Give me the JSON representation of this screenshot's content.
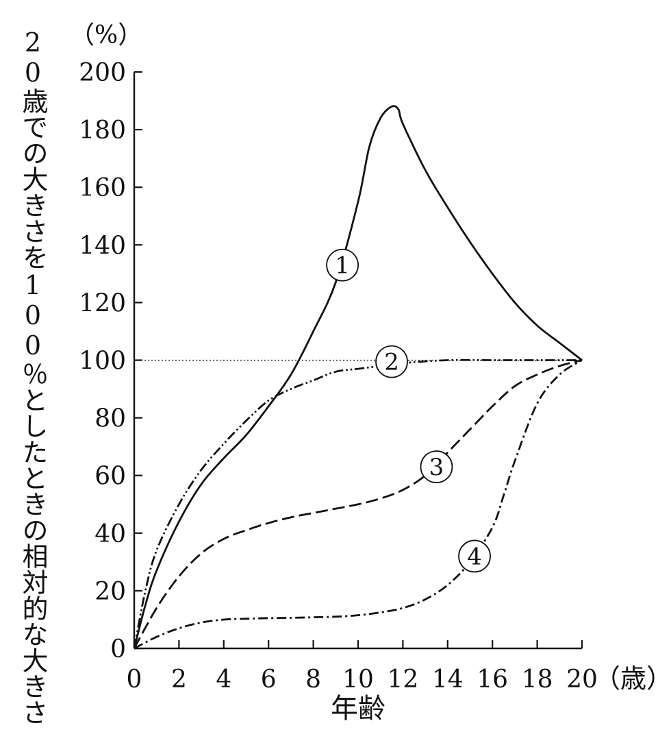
{
  "chart_data": {
    "type": "line",
    "ylabel": "20歳での大きさを100％としたときの相対的な大きさ",
    "xlabel": "年齢",
    "x_unit": "（歳）",
    "y_unit": "（%）",
    "xlim": [
      0,
      20
    ],
    "ylim": [
      0,
      200
    ],
    "x_ticks": [
      0,
      2,
      4,
      6,
      8,
      10,
      12,
      14,
      16,
      18,
      20
    ],
    "y_ticks": [
      0,
      20,
      40,
      60,
      80,
      100,
      120,
      140,
      160,
      180,
      200
    ],
    "reference_line": 100,
    "grid": false,
    "series": [
      {
        "name": "①",
        "style": "solid",
        "x": [
          0,
          0.5,
          1,
          2,
          3,
          4,
          5,
          6,
          7,
          8,
          9,
          10,
          10.5,
          11,
          11.5,
          11.8,
          12,
          13,
          14,
          15,
          16,
          17,
          18,
          19,
          20
        ],
        "y": [
          0,
          15,
          27,
          44,
          57,
          66,
          74,
          84,
          95,
          110,
          127,
          155,
          174,
          184,
          188,
          187,
          182,
          166,
          153,
          141,
          130,
          120,
          112,
          106,
          100
        ]
      },
      {
        "name": "②",
        "style": "dash-dot-dot",
        "x": [
          0,
          0.5,
          1,
          2,
          3,
          4,
          5,
          6,
          7,
          8,
          9,
          10,
          11,
          12,
          14,
          16,
          18,
          20
        ],
        "y": [
          0,
          20,
          34,
          50,
          62,
          71,
          79,
          86,
          90,
          93,
          96,
          97,
          98,
          99,
          100,
          100,
          100,
          100
        ]
      },
      {
        "name": "③",
        "style": "dashed",
        "x": [
          0,
          1,
          2,
          3,
          4,
          5,
          6,
          7,
          8,
          9,
          10,
          11,
          12,
          13,
          14,
          15,
          16,
          17,
          18,
          19,
          20
        ],
        "y": [
          0,
          14,
          25,
          33,
          38,
          41,
          43.5,
          45.5,
          47,
          48.5,
          50,
          52,
          55,
          60,
          68,
          76,
          84,
          91,
          95,
          98,
          100
        ]
      },
      {
        "name": "④",
        "style": "dash-dot",
        "x": [
          0,
          1,
          2,
          3,
          4,
          5,
          6,
          7,
          8,
          9,
          10,
          11,
          12,
          13,
          14,
          15,
          16,
          16.5,
          17,
          18,
          19,
          20
        ],
        "y": [
          0,
          4,
          7,
          9,
          10,
          10.3,
          10.5,
          10.6,
          10.8,
          11,
          11.5,
          12.5,
          14,
          17,
          22,
          30,
          42,
          53,
          65,
          85,
          95,
          100
        ]
      }
    ],
    "series_label_positions": {
      "①": [
        9.3,
        133
      ],
      "②": [
        11.5,
        99.5
      ],
      "③": [
        13.5,
        63
      ],
      "④": [
        15.2,
        32
      ]
    }
  }
}
